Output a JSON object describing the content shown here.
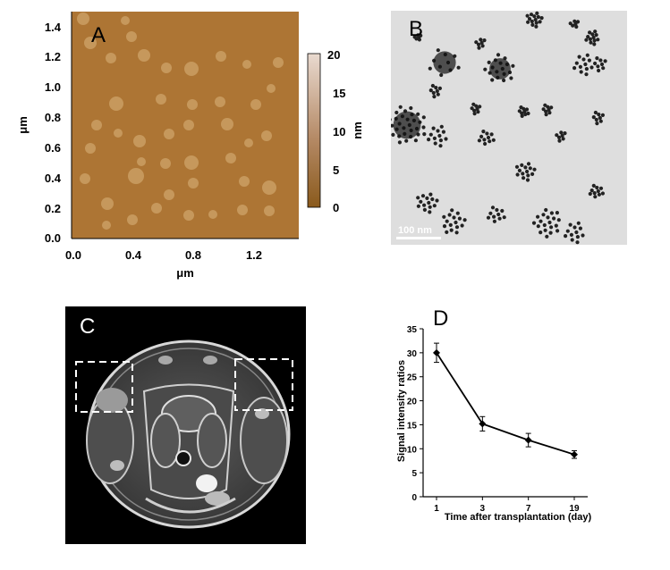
{
  "panels": {
    "a": {
      "letter": "A",
      "xlabel": "μm",
      "ylabel": "μm",
      "x_ticks": [
        "0.0",
        "0.4",
        "0.8",
        "1.2"
      ],
      "y_ticks": [
        "1.4",
        "1.2",
        "1.0",
        "0.8",
        "0.6",
        "0.4",
        "0.2",
        "0.0"
      ],
      "colorbar_label": "nm",
      "colorbar_ticks": [
        "20",
        "15",
        "10",
        "5",
        "0"
      ],
      "colors": {
        "map_base": "#b07a3a",
        "map_dark": "#8a5a1c",
        "colorbar_top": "#e8d7cc",
        "colorbar_bottom": "#8a5a1c"
      }
    },
    "b": {
      "letter": "B",
      "scale_bar_label": "100 nm",
      "colors": {
        "background": "#dcdcdc",
        "particle": "#1e1e1e"
      }
    },
    "c": {
      "letter": "C",
      "colors": {
        "background": "#000000",
        "tissue": "#6e6e6e",
        "bright": "#e6e6e6"
      }
    },
    "d": {
      "letter": "D"
    }
  },
  "chart_data": {
    "type": "line",
    "xlabel": "Time after transplantation (day)",
    "ylabel": "Signal intensity ratios",
    "categories": [
      "1",
      "3",
      "7",
      "19"
    ],
    "series": [
      {
        "values": [
          30.0,
          15.2,
          11.8,
          8.8
        ],
        "errors": [
          2.0,
          1.5,
          1.4,
          0.8
        ]
      }
    ],
    "ylim": [
      0,
      35
    ],
    "yticks": [
      "0",
      "5",
      "10",
      "15",
      "20",
      "25",
      "30",
      "35"
    ],
    "grid": false
  }
}
